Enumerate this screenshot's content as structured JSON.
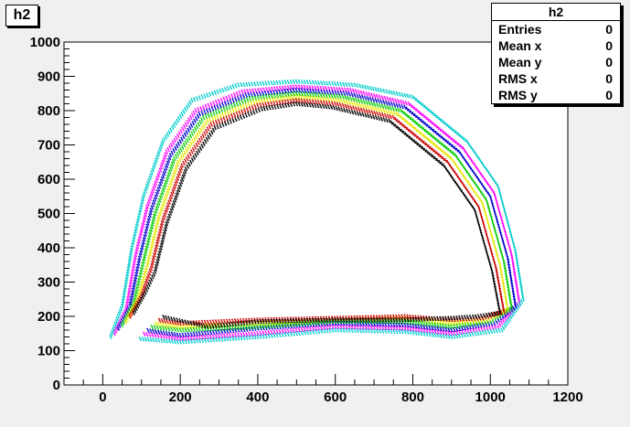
{
  "window": {
    "title": "h2"
  },
  "stats_box": {
    "title": "h2",
    "rows": [
      {
        "label": "Entries",
        "value": "0"
      },
      {
        "label": "Mean x",
        "value": "0"
      },
      {
        "label": "Mean y",
        "value": "0"
      },
      {
        "label": "RMS x",
        "value": "0"
      },
      {
        "label": "RMS y",
        "value": "0"
      }
    ]
  },
  "chart_data": {
    "type": "scatter",
    "title": "h2",
    "xlabel": "",
    "ylabel": "",
    "xlim": [
      -100,
      1200
    ],
    "ylim": [
      0,
      1000
    ],
    "x_ticks": [
      0,
      200,
      400,
      600,
      800,
      1000,
      1200
    ],
    "y_ticks": [
      0,
      100,
      200,
      300,
      400,
      500,
      600,
      700,
      800,
      900,
      1000
    ],
    "grid": false,
    "legend": "none",
    "colors": {
      "frame": "#ffffff",
      "axes": "#000000",
      "series": [
        "#000000",
        "#cc0000",
        "#00cc00",
        "#0000cc",
        "#e6e600",
        "#ff00ff",
        "#00cccc"
      ]
    },
    "description_shape": "nested arch (D-shaped) point bands",
    "series": [
      {
        "color": "#ff00ff",
        "points": [
          [
            30,
            150
          ],
          [
            60,
            220
          ],
          [
            85,
            380
          ],
          [
            115,
            520
          ],
          [
            165,
            680
          ],
          [
            240,
            800
          ],
          [
            360,
            855
          ],
          [
            500,
            870
          ],
          [
            640,
            860
          ],
          [
            790,
            820
          ],
          [
            930,
            690
          ],
          [
            1010,
            560
          ],
          [
            1055,
            380
          ],
          [
            1075,
            240
          ],
          [
            1020,
            170
          ],
          [
            900,
            150
          ],
          [
            780,
            165
          ],
          [
            600,
            170
          ],
          [
            400,
            150
          ],
          [
            200,
            135
          ],
          [
            100,
            150
          ]
        ]
      },
      {
        "color": "#00cccc",
        "points": [
          [
            20,
            140
          ],
          [
            50,
            230
          ],
          [
            75,
            400
          ],
          [
            105,
            550
          ],
          [
            155,
            710
          ],
          [
            230,
            830
          ],
          [
            350,
            875
          ],
          [
            500,
            885
          ],
          [
            650,
            875
          ],
          [
            800,
            840
          ],
          [
            940,
            710
          ],
          [
            1020,
            580
          ],
          [
            1065,
            390
          ],
          [
            1085,
            250
          ],
          [
            1030,
            160
          ],
          [
            900,
            140
          ],
          [
            780,
            155
          ],
          [
            600,
            160
          ],
          [
            400,
            140
          ],
          [
            200,
            125
          ],
          [
            90,
            135
          ]
        ]
      },
      {
        "color": "#0000cc",
        "points": [
          [
            40,
            165
          ],
          [
            70,
            230
          ],
          [
            95,
            370
          ],
          [
            125,
            510
          ],
          [
            175,
            670
          ],
          [
            250,
            790
          ],
          [
            370,
            845
          ],
          [
            500,
            860
          ],
          [
            630,
            850
          ],
          [
            780,
            810
          ],
          [
            920,
            680
          ],
          [
            1000,
            550
          ],
          [
            1045,
            370
          ],
          [
            1065,
            230
          ],
          [
            1010,
            180
          ],
          [
            900,
            160
          ],
          [
            780,
            175
          ],
          [
            600,
            180
          ],
          [
            400,
            165
          ],
          [
            200,
            145
          ],
          [
            110,
            160
          ]
        ]
      },
      {
        "color": "#00cc00",
        "points": [
          [
            50,
            175
          ],
          [
            80,
            240
          ],
          [
            105,
            360
          ],
          [
            135,
            500
          ],
          [
            185,
            660
          ],
          [
            260,
            780
          ],
          [
            380,
            835
          ],
          [
            500,
            850
          ],
          [
            620,
            840
          ],
          [
            770,
            800
          ],
          [
            910,
            670
          ],
          [
            990,
            540
          ],
          [
            1035,
            360
          ],
          [
            1055,
            225
          ],
          [
            1000,
            185
          ],
          [
            900,
            170
          ],
          [
            780,
            185
          ],
          [
            600,
            185
          ],
          [
            400,
            170
          ],
          [
            200,
            160
          ],
          [
            120,
            170
          ]
        ]
      },
      {
        "color": "#e6e600",
        "points": [
          [
            60,
            185
          ],
          [
            90,
            250
          ],
          [
            115,
            350
          ],
          [
            145,
            490
          ],
          [
            195,
            650
          ],
          [
            270,
            770
          ],
          [
            390,
            825
          ],
          [
            500,
            840
          ],
          [
            610,
            830
          ],
          [
            760,
            790
          ],
          [
            900,
            660
          ],
          [
            980,
            530
          ],
          [
            1025,
            350
          ],
          [
            1045,
            220
          ],
          [
            990,
            190
          ],
          [
            900,
            180
          ],
          [
            780,
            195
          ],
          [
            600,
            190
          ],
          [
            400,
            180
          ],
          [
            200,
            170
          ],
          [
            130,
            180
          ]
        ]
      },
      {
        "color": "#cc0000",
        "points": [
          [
            70,
            200
          ],
          [
            100,
            260
          ],
          [
            125,
            340
          ],
          [
            155,
            480
          ],
          [
            205,
            640
          ],
          [
            280,
            760
          ],
          [
            400,
            815
          ],
          [
            500,
            830
          ],
          [
            600,
            820
          ],
          [
            750,
            780
          ],
          [
            890,
            650
          ],
          [
            970,
            520
          ],
          [
            1015,
            340
          ],
          [
            1035,
            215
          ],
          [
            980,
            195
          ],
          [
            900,
            190
          ],
          [
            780,
            200
          ],
          [
            600,
            195
          ],
          [
            400,
            190
          ],
          [
            200,
            180
          ],
          [
            140,
            190
          ]
        ]
      },
      {
        "color": "#000000",
        "points": [
          [
            80,
            210
          ],
          [
            110,
            270
          ],
          [
            135,
            330
          ],
          [
            165,
            470
          ],
          [
            215,
            630
          ],
          [
            290,
            750
          ],
          [
            410,
            805
          ],
          [
            500,
            820
          ],
          [
            590,
            810
          ],
          [
            740,
            770
          ],
          [
            880,
            640
          ],
          [
            960,
            510
          ],
          [
            1005,
            330
          ],
          [
            1025,
            210
          ],
          [
            970,
            200
          ],
          [
            900,
            195
          ],
          [
            780,
            190
          ],
          [
            600,
            190
          ],
          [
            400,
            185
          ],
          [
            270,
            170
          ],
          [
            150,
            200
          ]
        ]
      }
    ]
  }
}
